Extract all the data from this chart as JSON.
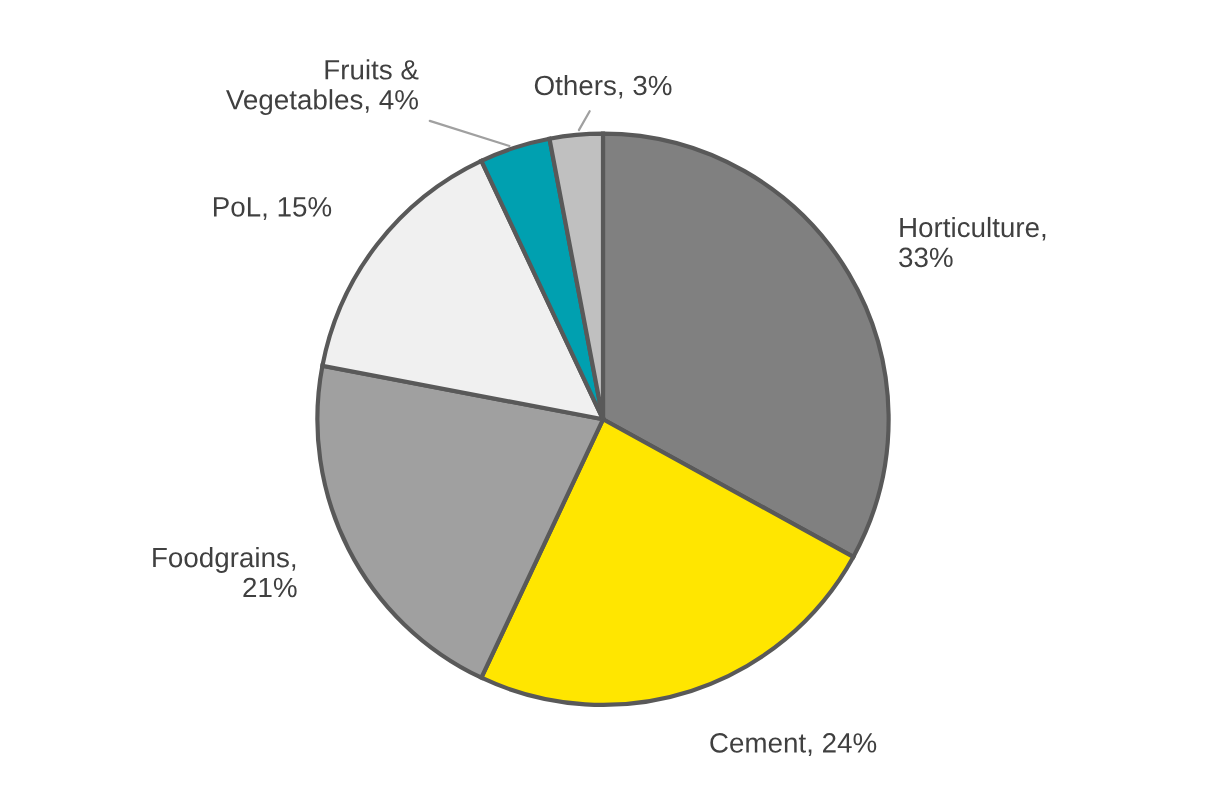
{
  "chart_data": {
    "type": "pie",
    "categories": [
      "Horticulture",
      "Cement",
      "Foodgrains",
      "PoL",
      "Fruits & Vegetables",
      "Others"
    ],
    "values": [
      33,
      24,
      21,
      15,
      4,
      3
    ],
    "colors": [
      "#808080",
      "#ffe600",
      "#a0a0a0",
      "#f0f0f0",
      "#00a0b0",
      "#c0c0c0"
    ],
    "value_labels": [
      ",\n33%",
      ", 24%",
      ",\n21%",
      ", 15%",
      ", 4%",
      ", 3%"
    ],
    "legend": false
  }
}
